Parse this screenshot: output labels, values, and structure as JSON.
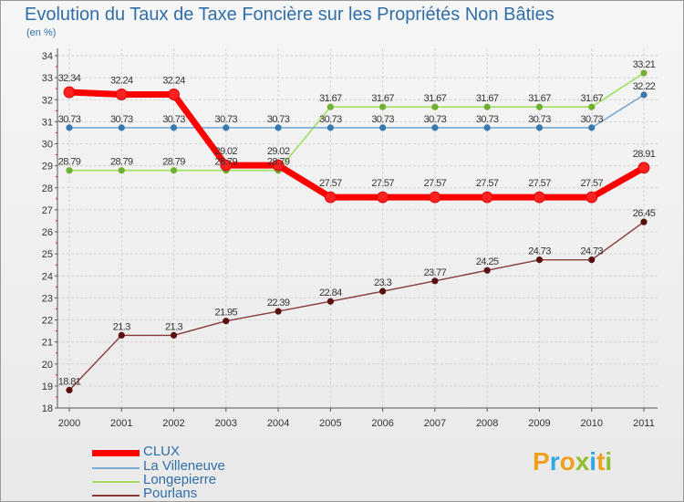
{
  "header": {
    "title": "Evolution du Taux de Taxe Foncière sur les Propriétés Non Bâties",
    "subtitle": "(en %)"
  },
  "brand": {
    "logo_text": "Proxiti",
    "colors": [
      "#f0a020",
      "#2ea8e0",
      "#f0a020",
      "#90c030",
      "#2ea8e0",
      "#f0a020",
      "#90c030"
    ]
  },
  "chart_data": {
    "type": "line",
    "title": "Evolution du Taux de Taxe Foncière sur les Propriétés Non Bâties",
    "ylabel": "(en %)",
    "xlabel": "",
    "x": [
      "2000",
      "2001",
      "2002",
      "2003",
      "2004",
      "2005",
      "2006",
      "2007",
      "2008",
      "2009",
      "2010",
      "2011"
    ],
    "ylim": [
      18,
      34
    ],
    "yticks": [
      18,
      19,
      20,
      21,
      22,
      23,
      24,
      25,
      26,
      27,
      28,
      29,
      30,
      31,
      32,
      33,
      34
    ],
    "grid": true,
    "legend_position": "bottom-left",
    "series": [
      {
        "name": "CLUX",
        "color": "#ff0000",
        "width": 7,
        "marker": 6,
        "values": [
          32.34,
          32.24,
          32.24,
          29.02,
          29.02,
          27.57,
          27.57,
          27.57,
          27.57,
          27.57,
          27.57,
          28.91
        ],
        "labels": [
          "32.34",
          "32.24",
          "32.24",
          "29.02",
          "29.02",
          "27.57",
          "27.57",
          "27.57",
          "27.57",
          "27.57",
          "27.57",
          "28.91"
        ]
      },
      {
        "name": "La Villeneuve",
        "color": "#7aaad0",
        "width": 1.6,
        "marker": 3.2,
        "values": [
          30.73,
          30.73,
          30.73,
          30.73,
          30.73,
          30.73,
          30.73,
          30.73,
          30.73,
          30.73,
          30.73,
          32.22
        ],
        "labels": [
          "30.73",
          "30.73",
          "30.73",
          "30.73",
          "30.73",
          "30.73",
          "30.73",
          "30.73",
          "30.73",
          "30.73",
          "30.73",
          "32.22"
        ]
      },
      {
        "name": "Longepierre",
        "color": "#a0e060",
        "width": 1.6,
        "marker": 3.2,
        "values": [
          28.79,
          28.79,
          28.79,
          28.79,
          28.79,
          31.67,
          31.67,
          31.67,
          31.67,
          31.67,
          31.67,
          33.21
        ],
        "labels": [
          "28.79",
          "28.79",
          "28.79",
          "28.79",
          "28.79",
          "31.67",
          "31.67",
          "31.67",
          "31.67",
          "31.67",
          "31.67",
          "33.21"
        ]
      },
      {
        "name": "Pourlans",
        "color": "#8a3a3a",
        "width": 1.4,
        "marker": 3.2,
        "values": [
          18.81,
          21.3,
          21.3,
          21.95,
          22.39,
          22.84,
          23.3,
          23.77,
          24.25,
          24.73,
          24.73,
          26.45
        ],
        "labels": [
          "18.81",
          "21.3",
          "21.3",
          "21.95",
          "22.39",
          "22.84",
          "23.3",
          "23.77",
          "24.25",
          "24.73",
          "24.73",
          "26.45"
        ]
      }
    ]
  }
}
